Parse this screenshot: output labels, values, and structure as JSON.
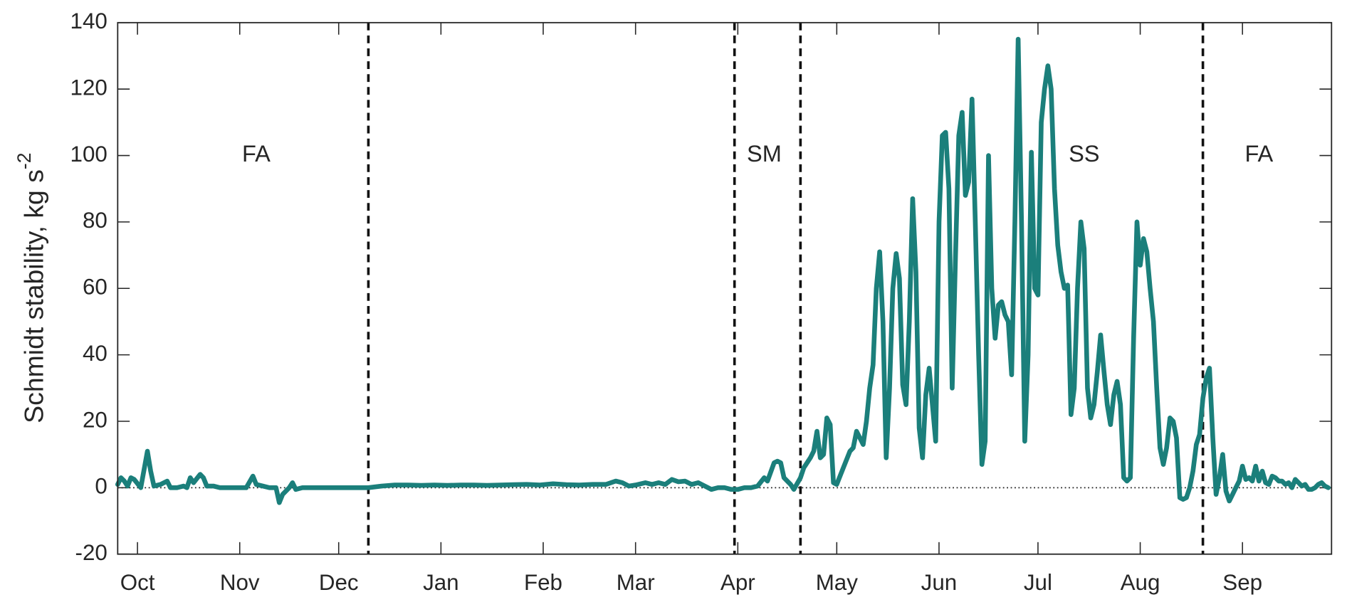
{
  "chart_data": {
    "type": "line",
    "ylabel": "Schmidt stability, kg s",
    "ylabel_superscript": "-2",
    "x": [
      -6,
      -5,
      -4,
      -3,
      -2,
      -1,
      1,
      3,
      4,
      5,
      7,
      9,
      10,
      12,
      14,
      15,
      16,
      17,
      19,
      20,
      21,
      23,
      25,
      27,
      29,
      31,
      33,
      35,
      36,
      38,
      40,
      42,
      43,
      44,
      46,
      47,
      48,
      50,
      52,
      55,
      58,
      61,
      64,
      67,
      70,
      74,
      78,
      82,
      86,
      90,
      94,
      98,
      102,
      106,
      110,
      114,
      118,
      122,
      126,
      130,
      134,
      138,
      142,
      145,
      147,
      149,
      151,
      154,
      156,
      158,
      160,
      162,
      164,
      166,
      168,
      170,
      172,
      174,
      176,
      178,
      180,
      182,
      184,
      186,
      188,
      190,
      191,
      193,
      194,
      195,
      196,
      198,
      199,
      201,
      202,
      204,
      205,
      206,
      207,
      208,
      209,
      210,
      211,
      212,
      214,
      216,
      217,
      218,
      220,
      221,
      222,
      223,
      224,
      225,
      226,
      227,
      228,
      229,
      230,
      231,
      232,
      233,
      234,
      235,
      236,
      237,
      238,
      239,
      240,
      241,
      242,
      243,
      244,
      245,
      246,
      247,
      248,
      249,
      250,
      251,
      252,
      253,
      254,
      255,
      256,
      257,
      258,
      259,
      260,
      261,
      262,
      263,
      264,
      265,
      266,
      267,
      268,
      269,
      270,
      271,
      272,
      273,
      274,
      275,
      276,
      277,
      278,
      279,
      280,
      281,
      282,
      283,
      284,
      285,
      286,
      287,
      288,
      289,
      290,
      291,
      292,
      293,
      294,
      295,
      296,
      297,
      298,
      299,
      300,
      301,
      302,
      303,
      304,
      305,
      306,
      307,
      308,
      309,
      310,
      311,
      312,
      313,
      314,
      315,
      316,
      317,
      318,
      319,
      320,
      321,
      322,
      323,
      324,
      325,
      326,
      327,
      328,
      329,
      330,
      331,
      332,
      333,
      334,
      335,
      336,
      337,
      338,
      339,
      340,
      341,
      342,
      343,
      344,
      345,
      346,
      347,
      348,
      349,
      350,
      351,
      352,
      353,
      354,
      355,
      356,
      357,
      358,
      359,
      360,
      361
    ],
    "values": [
      1,
      3,
      2,
      0.5,
      3,
      2.5,
      0,
      11,
      5,
      0.5,
      1,
      2,
      0,
      0,
      0.5,
      0,
      3,
      1.5,
      4,
      3,
      0.5,
      0.5,
      0,
      0,
      0,
      0,
      0,
      3.5,
      1,
      0.5,
      0,
      0,
      -4.5,
      -2,
      0,
      1.5,
      -0.5,
      0,
      0,
      0,
      0,
      0,
      0,
      0,
      0,
      0.5,
      0.8,
      0.8,
      0.7,
      0.8,
      0.7,
      0.8,
      0.8,
      0.7,
      0.8,
      0.9,
      1,
      0.8,
      1.2,
      0.9,
      0.8,
      1,
      1,
      2,
      1.5,
      0.5,
      0.8,
      1.5,
      1,
      1.5,
      1,
      2.5,
      1.8,
      2,
      1,
      1.5,
      0.5,
      -0.5,
      0,
      0,
      -0.5,
      -0.5,
      0,
      0,
      0.5,
      3,
      2,
      7.5,
      8,
      7.5,
      3,
      1,
      -0.5,
      3,
      6,
      9,
      11,
      17,
      9,
      10,
      21,
      19,
      1.5,
      1,
      6,
      11,
      12,
      17,
      13,
      20,
      30,
      37,
      60,
      71,
      50,
      9,
      30,
      60,
      70.5,
      63,
      31,
      25,
      50,
      87,
      65,
      18,
      9,
      28,
      36,
      25,
      14,
      80,
      106,
      107,
      90,
      30,
      70,
      106,
      113,
      88,
      92,
      117,
      80,
      40,
      7,
      14,
      100,
      60,
      45,
      55,
      56,
      52,
      50,
      34,
      80,
      135,
      80,
      14,
      40,
      101,
      60,
      58,
      110,
      120,
      127,
      120,
      90,
      73,
      65,
      60,
      61,
      22,
      30,
      60,
      80,
      72,
      30,
      21,
      25,
      35,
      46,
      35,
      25,
      19,
      28,
      32,
      25,
      3,
      2,
      3,
      45,
      80,
      67,
      75,
      71,
      60,
      50,
      30,
      12,
      7,
      12,
      21,
      20,
      15,
      -3,
      -3.5,
      -3,
      0,
      5,
      13,
      16,
      27,
      33,
      36,
      15,
      -2,
      3,
      10,
      -1,
      -4,
      -2,
      0,
      2,
      6.5,
      2.5,
      3,
      2,
      6.5,
      2,
      5,
      1.5,
      1,
      3.5,
      3,
      2,
      2,
      1,
      1.5,
      0,
      2.5,
      1.5,
      0.5,
      1,
      -0.5,
      -0.5,
      0,
      1,
      1.5,
      0.5,
      0
    ],
    "color": "#1b7f7b",
    "xlim": [
      -6,
      362
    ],
    "ylim": [
      -20,
      140
    ],
    "yticks": [
      -20,
      0,
      20,
      40,
      60,
      80,
      100,
      120,
      140
    ],
    "xticks": [
      {
        "value": 0,
        "label": "Oct"
      },
      {
        "value": 31,
        "label": "Nov"
      },
      {
        "value": 61,
        "label": "Dec"
      },
      {
        "value": 92,
        "label": "Jan"
      },
      {
        "value": 123,
        "label": "Feb"
      },
      {
        "value": 151,
        "label": "Mar"
      },
      {
        "value": 182,
        "label": "Apr"
      },
      {
        "value": 212,
        "label": "May"
      },
      {
        "value": 243,
        "label": "Jun"
      },
      {
        "value": 273,
        "label": "Jul"
      },
      {
        "value": 304,
        "label": "Aug"
      },
      {
        "value": 335,
        "label": "Sep"
      }
    ],
    "vlines": [
      70,
      181,
      201,
      323
    ],
    "hline": 0,
    "annotations": [
      {
        "text": "FA",
        "x": 36,
        "y": 100
      },
      {
        "text": "SM",
        "x": 190,
        "y": 100
      },
      {
        "text": "SS",
        "x": 287,
        "y": 100
      },
      {
        "text": "FA",
        "x": 340,
        "y": 100
      }
    ]
  }
}
